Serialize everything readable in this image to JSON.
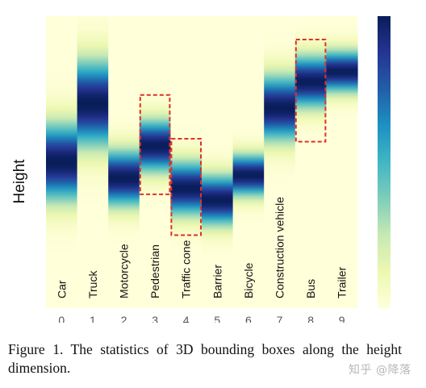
{
  "figure": {
    "ylabel": "Height",
    "colors": {
      "colormap": [
        "#ffffd9",
        "#edf8b1",
        "#c7e9b4",
        "#7fcdbb",
        "#41b6c4",
        "#1d91c0",
        "#225ea8",
        "#253494",
        "#081d58"
      ],
      "highlight_box": "#e0302a",
      "label_text": "#111111",
      "tick_text": "#555555"
    },
    "colorbar": true
  },
  "chart_data": {
    "type": "heatmap",
    "x_ticks": [
      "0",
      "1",
      "2",
      "3",
      "4",
      "5",
      "6",
      "7",
      "8",
      "9"
    ],
    "categories": [
      "Car",
      "Truck",
      "Motorcycle",
      "Pedestrian",
      "Traffic cone",
      "Barrier",
      "Bicycle",
      "Construction vehicle",
      "Bus",
      "Trailer"
    ],
    "ylabel": "Height",
    "y_range": [
      0,
      1
    ],
    "distributions": [
      {
        "category": "Car",
        "peak": 0.5,
        "spread": 0.09
      },
      {
        "category": "Truck",
        "peak": 0.3,
        "spread": 0.1
      },
      {
        "category": "Motorcycle",
        "peak": 0.555,
        "spread": 0.065
      },
      {
        "category": "Pedestrian",
        "peak": 0.445,
        "spread": 0.06
      },
      {
        "category": "Traffic cone",
        "peak": 0.59,
        "spread": 0.062
      },
      {
        "category": "Barrier",
        "peak": 0.63,
        "spread": 0.058
      },
      {
        "category": "Bicycle",
        "peak": 0.545,
        "spread": 0.048
      },
      {
        "category": "Construction vehicle",
        "peak": 0.315,
        "spread": 0.075
      },
      {
        "category": "Bus",
        "peak": 0.225,
        "spread": 0.06
      },
      {
        "category": "Trailer",
        "peak": 0.19,
        "spread": 0.048
      }
    ],
    "highlighted": [
      "Pedestrian",
      "Traffic cone",
      "Bus"
    ],
    "highlight_ranges": [
      {
        "category": "Pedestrian",
        "y": [
          0.27,
          0.61
        ]
      },
      {
        "category": "Traffic cone",
        "y": [
          0.42,
          0.75
        ]
      },
      {
        "category": "Bus",
        "y": [
          0.08,
          0.43
        ]
      }
    ],
    "colorbar": true,
    "grid": false
  },
  "caption": {
    "text": "Figure 1.  The statistics of 3D bounding boxes along the height dimension."
  },
  "watermark": {
    "text": "知乎 @降落"
  }
}
